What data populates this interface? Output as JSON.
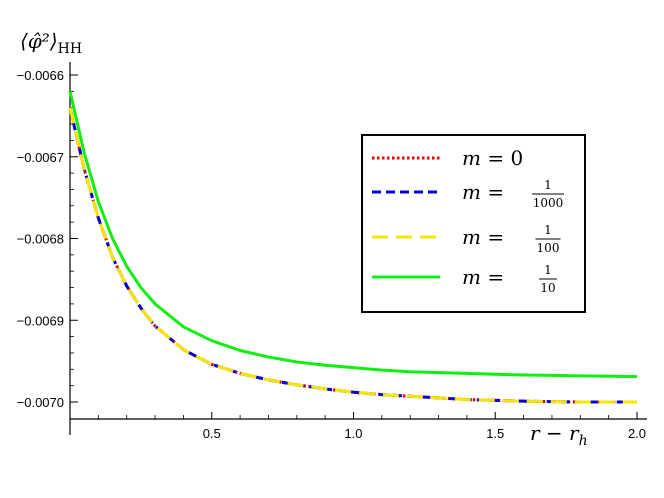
{
  "chart_data": {
    "type": "line",
    "title": "",
    "ylabel": "⟨φ̂²⟩",
    "ylabel_subscript": "HH",
    "xlabel": "r − r",
    "xlabel_subscript": "h",
    "xlim": [
      0,
      2.0
    ],
    "ylim": [
      -0.00705,
      -0.0066
    ],
    "x_ticks": [
      0.5,
      1.0,
      1.5,
      2.0
    ],
    "x_tick_labels": [
      "0.5",
      "1.0",
      "1.5",
      "2.0"
    ],
    "y_ticks": [
      -0.0066,
      -0.0067,
      -0.0068,
      -0.0069,
      -0.007
    ],
    "y_tick_labels": [
      "−0.0066",
      "−0.0067",
      "−0.0068",
      "−0.0069",
      "−0.0070"
    ],
    "grid": false,
    "legend_position": "center-right",
    "x": [
      0,
      0.05,
      0.1,
      0.15,
      0.2,
      0.25,
      0.3,
      0.4,
      0.5,
      0.6,
      0.7,
      0.8,
      0.9,
      1.0,
      1.1,
      1.2,
      1.3,
      1.4,
      1.5,
      1.6,
      1.7,
      1.8,
      1.9,
      2.0
    ],
    "series": [
      {
        "label_var": "m = ",
        "label_value": "0",
        "label_num": "",
        "label_den": "",
        "color": "#e60000",
        "dash": "2.5,2.5",
        "width": 3,
        "values": [
          -0.00664,
          -0.006715,
          -0.006775,
          -0.006823,
          -0.006858,
          -0.006885,
          -0.006907,
          -0.006936,
          -0.006954,
          -0.006965,
          -0.006973,
          -0.006979,
          -0.006984,
          -0.006988,
          -0.006991,
          -0.006993,
          -0.006995,
          -0.006997,
          -0.006998,
          -0.006999,
          -0.0069995,
          -0.007,
          -0.007,
          -0.007
        ]
      },
      {
        "label_var": "m = ",
        "label_value": "",
        "label_num": "1",
        "label_den": "1000",
        "color": "#0000dd",
        "dash": "9,5",
        "width": 3,
        "values": [
          -0.00664,
          -0.006715,
          -0.006775,
          -0.006823,
          -0.006858,
          -0.006885,
          -0.006907,
          -0.006936,
          -0.006954,
          -0.006965,
          -0.006973,
          -0.006979,
          -0.006984,
          -0.006988,
          -0.006991,
          -0.006993,
          -0.006995,
          -0.006997,
          -0.006998,
          -0.006999,
          -0.0069995,
          -0.007,
          -0.007,
          -0.007
        ]
      },
      {
        "label_var": "m = ",
        "label_value": "",
        "label_num": "1",
        "label_den": "100",
        "color": "#f5e600",
        "dash": "16,8",
        "width": 3,
        "values": [
          -0.00664,
          -0.006715,
          -0.006775,
          -0.006823,
          -0.006858,
          -0.006885,
          -0.006907,
          -0.006936,
          -0.006954,
          -0.006965,
          -0.006973,
          -0.006979,
          -0.006984,
          -0.006988,
          -0.006991,
          -0.006993,
          -0.006995,
          -0.006997,
          -0.006998,
          -0.006999,
          -0.0069995,
          -0.007,
          -0.007,
          -0.007
        ]
      },
      {
        "label_var": "m = ",
        "label_value": "",
        "label_num": "1",
        "label_den": "10",
        "color": "#11ee11",
        "dash": "",
        "width": 3,
        "values": [
          -0.00662,
          -0.006695,
          -0.006755,
          -0.0068,
          -0.006834,
          -0.00686,
          -0.00688,
          -0.006908,
          -0.006925,
          -0.006937,
          -0.006945,
          -0.006951,
          -0.006955,
          -0.006958,
          -0.006961,
          -0.006963,
          -0.006964,
          -0.006965,
          -0.006966,
          -0.006967,
          -0.0069675,
          -0.006968,
          -0.0069685,
          -0.006969
        ]
      }
    ]
  }
}
